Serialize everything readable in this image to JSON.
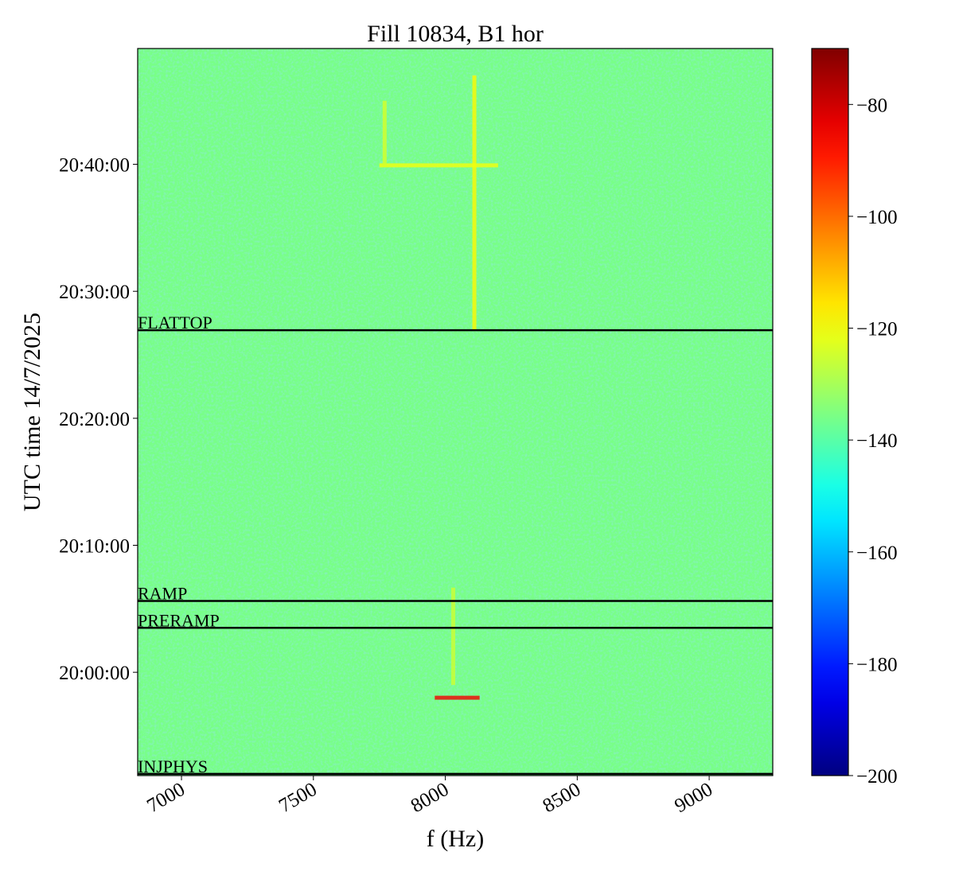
{
  "chart_data": {
    "type": "spectrogram",
    "title": "Fill 10834, B1 hor",
    "x_label": "f (Hz)",
    "y_label": "UTC time 14/7/2025",
    "xlim": [
      6834,
      9241
    ],
    "xticks": [
      7000,
      7500,
      8000,
      8500,
      9000
    ],
    "ylim": [
      71512,
      74947
    ],
    "yticks": [
      {
        "value": 72000,
        "label": "20:00:00"
      },
      {
        "value": 72600,
        "label": "20:10:00"
      },
      {
        "value": 73200,
        "label": "20:20:00"
      },
      {
        "value": 73800,
        "label": "20:30:00"
      },
      {
        "value": 74400,
        "label": "20:40:00"
      }
    ],
    "colormap": "jet",
    "clim": [
      -200,
      -70
    ],
    "cticks": [
      {
        "value": -200,
        "label": "−200"
      },
      {
        "value": -180,
        "label": "−180"
      },
      {
        "value": -160,
        "label": "−160"
      },
      {
        "value": -140,
        "label": "−140"
      },
      {
        "value": -120,
        "label": "−120"
      },
      {
        "value": -100,
        "label": "−100"
      },
      {
        "value": -80,
        "label": "−80"
      }
    ],
    "background_level": -136,
    "streaks": [
      {
        "f": [
          8110,
          8110
        ],
        "t": [
          73620,
          74820
        ],
        "level": -118
      },
      {
        "f": [
          7750,
          8200
        ],
        "t": [
          74395,
          74395
        ],
        "level": -120
      },
      {
        "f": [
          7770,
          7770
        ],
        "t": [
          74395,
          74700
        ],
        "level": -124
      },
      {
        "f": [
          8030,
          8030
        ],
        "t": [
          71940,
          72400
        ],
        "level": -125
      },
      {
        "f": [
          7960,
          8130
        ],
        "t": [
          71880,
          71880
        ],
        "level": -85
      }
    ],
    "events": [
      {
        "label": "FLATTOP",
        "t": 73616
      },
      {
        "label": "RAMP",
        "t": 72337
      },
      {
        "label": "PRERAMP",
        "t": 72210
      },
      {
        "label": "INJPHYS",
        "t": 71520
      }
    ]
  }
}
